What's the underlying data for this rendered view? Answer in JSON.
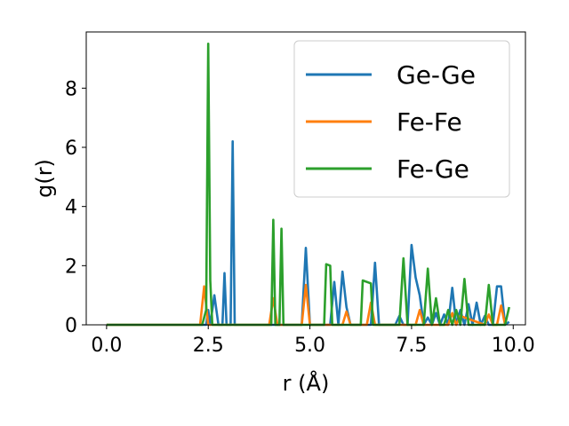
{
  "chart_data": {
    "type": "line",
    "title": "",
    "xlabel": "r (Å)",
    "ylabel": "g(r)",
    "xlim": [
      -0.5,
      10.3
    ],
    "ylim": [
      0,
      9.9
    ],
    "xticks": [
      0.0,
      2.5,
      5.0,
      7.5,
      10.0
    ],
    "xtick_labels": [
      "0.0",
      "2.5",
      "5.0",
      "7.5",
      "10.0"
    ],
    "yticks": [
      0,
      2,
      4,
      6,
      8
    ],
    "ytick_labels": [
      "0",
      "2",
      "4",
      "6",
      "8"
    ],
    "grid": false,
    "legend_position": "top-right",
    "series": [
      {
        "name": "Ge-Ge",
        "color": "#1f77b4",
        "x": [
          0.0,
          2.3,
          2.45,
          2.5,
          2.55,
          2.65,
          2.75,
          2.85,
          2.9,
          2.95,
          3.05,
          3.1,
          3.15,
          3.2,
          4.8,
          4.9,
          5.0,
          5.5,
          5.6,
          5.7,
          5.8,
          5.9,
          6.0,
          6.5,
          6.6,
          6.7,
          7.0,
          7.1,
          7.2,
          7.3,
          7.4,
          7.5,
          7.6,
          7.7,
          7.8,
          7.9,
          8.0,
          8.1,
          8.2,
          8.3,
          8.4,
          8.5,
          8.6,
          8.7,
          8.8,
          8.9,
          9.0,
          9.1,
          9.2,
          9.3,
          9.4,
          9.5,
          9.6,
          9.7,
          9.8,
          9.9
        ],
        "y": [
          0.0,
          0.0,
          0.0,
          0.5,
          0.0,
          1.0,
          0.0,
          0.0,
          1.75,
          0.0,
          0.0,
          6.2,
          0.0,
          0.0,
          0.0,
          2.6,
          0.0,
          0.0,
          1.45,
          0.0,
          1.8,
          0.6,
          0.0,
          0.0,
          2.1,
          0.0,
          0.0,
          0.0,
          0.3,
          0.0,
          0.0,
          2.7,
          1.6,
          1.0,
          0.0,
          0.25,
          0.0,
          0.4,
          0.0,
          0.35,
          0.0,
          1.25,
          0.0,
          0.5,
          0.0,
          0.7,
          0.0,
          0.75,
          0.0,
          0.3,
          0.0,
          0.0,
          1.3,
          1.3,
          0.0,
          0.1
        ]
      },
      {
        "name": "Fe-Fe",
        "color": "#ff7f0e",
        "x": [
          0.0,
          2.3,
          2.4,
          2.5,
          4.0,
          4.1,
          4.2,
          4.8,
          4.9,
          5.0,
          5.8,
          5.9,
          6.0,
          6.4,
          6.5,
          6.6,
          7.6,
          7.7,
          7.8,
          8.4,
          8.5,
          8.6,
          8.7,
          9.3,
          9.4,
          9.5,
          9.6,
          9.7,
          9.8
        ],
        "y": [
          0.0,
          0.0,
          1.3,
          0.0,
          0.0,
          0.9,
          0.0,
          0.0,
          1.35,
          0.0,
          0.0,
          0.45,
          0.0,
          0.0,
          0.75,
          0.0,
          0.0,
          0.5,
          0.0,
          0.0,
          0.4,
          0.0,
          0.3,
          0.0,
          0.35,
          0.0,
          0.0,
          0.65,
          0.0
        ]
      },
      {
        "name": "Fe-Ge",
        "color": "#2ca02c",
        "x": [
          0.0,
          2.35,
          2.45,
          2.5,
          2.55,
          2.6,
          4.05,
          4.1,
          4.15,
          4.25,
          4.3,
          4.35,
          4.45,
          5.35,
          5.4,
          5.5,
          5.55,
          5.6,
          6.25,
          6.3,
          6.5,
          6.55,
          7.0,
          7.1,
          7.2,
          7.3,
          7.4,
          7.5,
          7.6,
          7.7,
          7.8,
          7.9,
          8.0,
          8.1,
          8.2,
          8.3,
          8.4,
          8.5,
          8.6,
          8.7,
          8.8,
          8.9,
          9.0,
          9.1,
          9.2,
          9.3,
          9.4,
          9.5,
          9.6,
          9.7,
          9.8,
          9.9
        ],
        "y": [
          0.0,
          0.0,
          0.5,
          9.5,
          1.5,
          0.0,
          0.0,
          3.55,
          0.0,
          0.0,
          3.25,
          0.0,
          0.0,
          0.0,
          2.05,
          2.0,
          0.0,
          0.0,
          0.0,
          1.5,
          1.4,
          0.0,
          0.0,
          0.0,
          0.0,
          2.25,
          0.0,
          0.0,
          0.0,
          0.0,
          0.0,
          1.9,
          0.0,
          0.9,
          0.0,
          0.0,
          0.5,
          0.0,
          0.5,
          0.0,
          1.55,
          0.0,
          0.0,
          0.0,
          0.0,
          0.0,
          1.35,
          0.0,
          0.0,
          0.0,
          0.0,
          0.6
        ]
      }
    ]
  }
}
